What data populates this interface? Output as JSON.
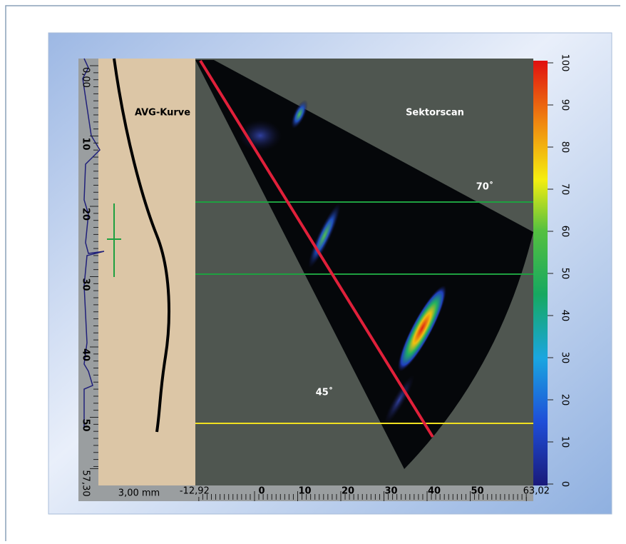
{
  "labels": {
    "avg": "AVG-Kurve",
    "sector": "Sektorscan",
    "angle_70": "70˚",
    "angle_45": "45˚",
    "resolution": "3,00 mm"
  },
  "depth_axis": {
    "ticks": [
      {
        "value": 0,
        "label": "0,00"
      },
      10,
      20,
      30,
      40,
      50,
      {
        "value": 57.3,
        "label": "57,30"
      }
    ]
  },
  "x_axis": {
    "ticks": [
      {
        "value": -12.92,
        "label": "-12,92"
      },
      0,
      10,
      20,
      30,
      40,
      50,
      {
        "value": 63.02,
        "label": "63,02"
      }
    ]
  },
  "colorbar": {
    "ticks": [
      0,
      10,
      20,
      30,
      40,
      50,
      60,
      70,
      80,
      90,
      100
    ]
  }
}
